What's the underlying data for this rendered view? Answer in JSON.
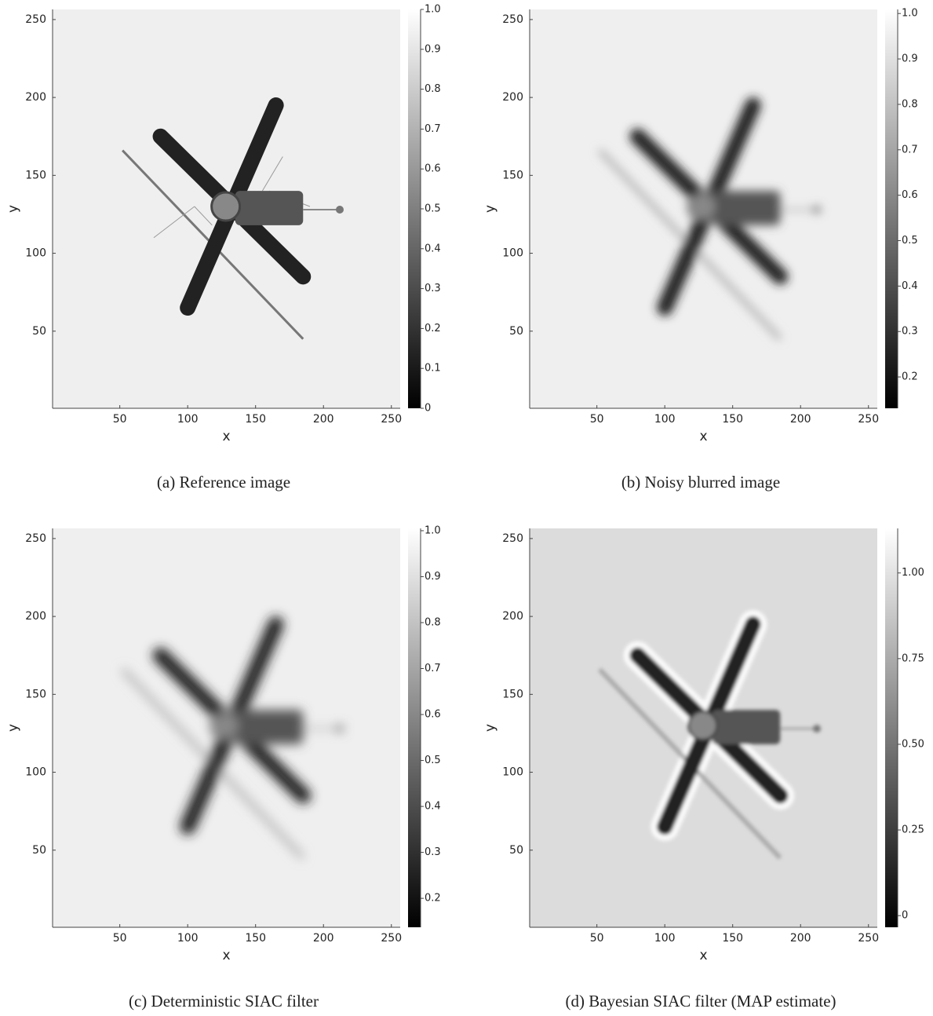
{
  "chart_data": [
    {
      "type": "heatmap",
      "caption": "(a) Reference image",
      "xlabel": "x",
      "ylabel": "y",
      "xlim": [
        0.5,
        256.5
      ],
      "ylim": [
        0.5,
        256.5
      ],
      "xticks": [
        50,
        100,
        150,
        200,
        250
      ],
      "yticks": [
        50,
        100,
        150,
        200,
        250
      ],
      "background": "#efefef",
      "colormap": [
        "#000000",
        "#ffffff"
      ],
      "colorbar": {
        "lim": [
          0,
          1
        ],
        "ticks": [
          0,
          0.1,
          0.2,
          0.3,
          0.4,
          0.5,
          0.6,
          0.7,
          0.8,
          0.9,
          {
            "value": 1,
            "label": "1.0"
          }
        ]
      }
    },
    {
      "type": "heatmap",
      "caption": "(b) Noisy blurred image",
      "xlabel": "x",
      "ylabel": "y",
      "xlim": [
        0.5,
        256.5
      ],
      "ylim": [
        0.5,
        256.5
      ],
      "xticks": [
        50,
        100,
        150,
        200,
        250
      ],
      "yticks": [
        50,
        100,
        150,
        200,
        250
      ],
      "background": "#efefef",
      "colormap": [
        "#000000",
        "#ffffff"
      ],
      "colorbar": {
        "lim": [
          0.131,
          1.009
        ],
        "ticks": [
          0.2,
          0.3,
          0.4,
          0.5,
          0.6,
          0.7,
          0.8,
          0.9,
          {
            "value": 1,
            "label": "1.0"
          }
        ]
      }
    },
    {
      "type": "heatmap",
      "caption": "(c) Deterministic SIAC filter",
      "xlabel": "x",
      "ylabel": "y",
      "xlim": [
        0.5,
        256.5
      ],
      "ylim": [
        0.5,
        256.5
      ],
      "xticks": [
        50,
        100,
        150,
        200,
        250
      ],
      "yticks": [
        50,
        100,
        150,
        200,
        250
      ],
      "background": "#efefef",
      "colormap": [
        "#000000",
        "#ffffff"
      ],
      "colorbar": {
        "lim": [
          0.137,
          1.005
        ],
        "ticks": [
          0.2,
          0.3,
          0.4,
          0.5,
          0.6,
          0.7,
          0.8,
          0.9,
          {
            "value": 1,
            "label": "1.0"
          }
        ]
      }
    },
    {
      "type": "heatmap",
      "caption": "(d) Bayesian SIAC filter (MAP estimate)",
      "xlabel": "x",
      "ylabel": "y",
      "xlim": [
        0.5,
        256.5
      ],
      "ylim": [
        0.5,
        256.5
      ],
      "xticks": [
        50,
        100,
        150,
        200,
        250
      ],
      "yticks": [
        50,
        100,
        150,
        200,
        250
      ],
      "background": "#dcdcdc",
      "colormap": [
        "#000000",
        "#ffffff"
      ],
      "colorbar": {
        "lim": [
          -0.034,
          1.13
        ],
        "ticks": [
          0,
          {
            "value": 0.25,
            "label": "0.25"
          },
          {
            "value": 0.5,
            "label": "0.50"
          },
          {
            "value": 0.75,
            "label": "0.75"
          },
          {
            "value": 1,
            "label": "1.00"
          }
        ]
      }
    }
  ]
}
